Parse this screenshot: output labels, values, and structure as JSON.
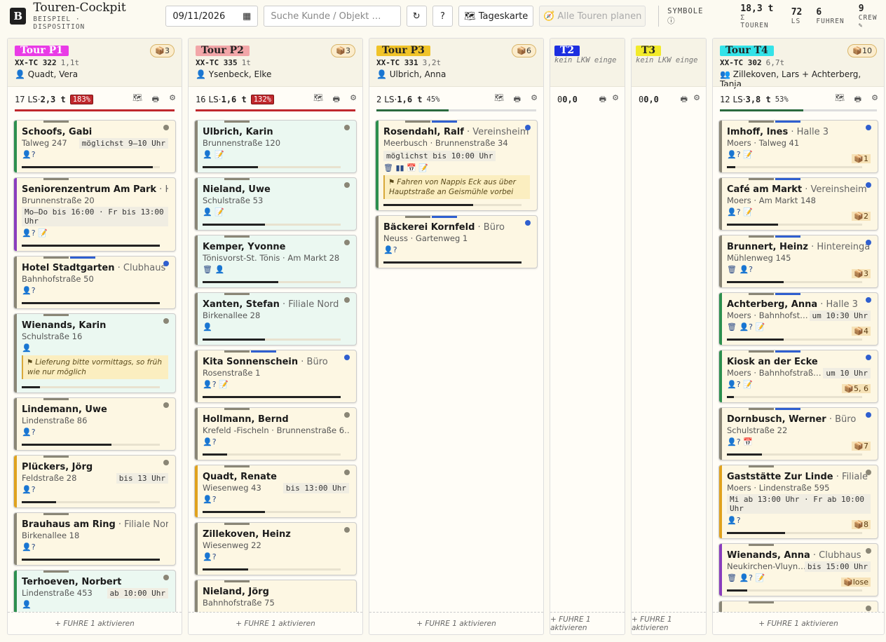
{
  "app": {
    "logo": "B",
    "title": "Touren-Cockpit",
    "subtitle": "BEISPIEL · DISPOSITION"
  },
  "toolbar": {
    "date": "09/11/2026",
    "search_placeholder": "Suche Kunde / Objekt …",
    "refresh": "↻",
    "help": "?",
    "daymap": "🗺 Tageskarte",
    "plan_all": "🧭 Alle Touren planen",
    "symbols": "SYMBOLE ⓘ"
  },
  "stats": [
    {
      "v": "18,3 t",
      "l": "Σ TOUREN"
    },
    {
      "v": "72",
      "l": "LS"
    },
    {
      "v": "6",
      "l": "FUHREN"
    },
    {
      "v": "9",
      "l": "CREW ✎"
    }
  ],
  "activate": "+ FUHRE 1 aktivieren",
  "colors": {
    "over": "#c0282d",
    "ok": "#2b6a3e",
    "blue": "#2f5fcf",
    "grey": "#8a8676",
    "purple": "#8a3dbd",
    "orange": "#e0a21d",
    "green": "#2d8f4e"
  },
  "columns": [
    {
      "tag": "Tour P1",
      "tagbg": "#e93be6",
      "tagfg": "#fff",
      "count": "📦3",
      "plate": "XX-TC 322",
      "weight": "1,1t",
      "driver": "👤 Quadt, Vera",
      "ls": "17",
      "lsl": "LS",
      "t": "2,3 t",
      "pct": "183%",
      "over": true,
      "fill": 1.0,
      "barc": "#c0282d",
      "cards": [
        {
          "n": "Schoofs, Gabi",
          "sf": "",
          "a": "Talweg 247",
          "tw": "möglichst 9–10 Uhr",
          "twr": true,
          "ic": "👤?",
          "lb": "#2d8f4e",
          "dot": "#8a8676",
          "p": 0.95,
          "mint": false
        },
        {
          "n": "Seniorenzentrum Am Park",
          "sf": " · Hi…",
          "a": "Brunnenstraße 20",
          "tw": "Mo–Do bis 16:00 · Fr bis 13:00 Uhr",
          "ic": "👤? 📝",
          "lb": "#8a3dbd",
          "p": 1.0
        },
        {
          "n": "Hotel Stadtgarten",
          "sf": " · Clubhaus",
          "a": "Bahnhofstraße 50",
          "ic": "👤?",
          "lb": "#8a8676",
          "dot": "#2f5fcf",
          "p": 1.0
        },
        {
          "n": "Wienands, Karin",
          "sf": "",
          "a": "Schulstraße 16",
          "ic": "👤",
          "lb": "#8a8676",
          "dot": "#8a8676",
          "note": "⚑ Lieferung bitte vormittags, so früh wie nur möglich",
          "p": 0.13,
          "mint": true
        },
        {
          "n": "Lindemann, Uwe",
          "sf": "",
          "a": "Lindenstraße 86",
          "ic": "👤?",
          "lb": "#8a8676",
          "dot": "#8a8676",
          "p": 0.65
        },
        {
          "n": "Plückers, Jörg",
          "sf": "",
          "a": "Feldstraße 28",
          "tw": "bis 13 Uhr",
          "twr": true,
          "ic": "👤?",
          "lb": "#e0a21d",
          "dot": "#8a8676",
          "p": 0.25
        },
        {
          "n": "Brauhaus am Ring",
          "sf": " · Filiale Nord",
          "a": "Birkenallee 18",
          "ic": "👤?",
          "lb": "#8a8676",
          "p": 1.0
        },
        {
          "n": "Terhoeven, Norbert",
          "sf": "",
          "a": "Lindenstraße 453",
          "tw": "ab 10:00 Uhr",
          "twr": true,
          "ic": "👤",
          "lb": "#2d8f4e",
          "dot": "#8a8676",
          "p": 0.5,
          "mint": true
        }
      ]
    },
    {
      "tag": "Tour P2",
      "tagbg": "#f2a6a8",
      "tagfg": "#222",
      "count": "📦3",
      "plate": "XX-TC 335",
      "weight": "1t",
      "driver": "👤 Ysenbeck, Elke",
      "ls": "16",
      "lsl": "LS",
      "t": "1,6 t",
      "pct": "132%",
      "over": true,
      "fill": 1.0,
      "barc": "#c0282d",
      "cards": [
        {
          "n": "Ulbrich, Karin",
          "sf": "",
          "a": "Brunnenstraße 120",
          "ic": "👤 📝",
          "lb": "#8a8676",
          "dot": "#8a8676",
          "p": 0.4,
          "mint": true
        },
        {
          "n": "Nieland, Uwe",
          "sf": "",
          "a": "Schulstraße 53",
          "ic": "👤 📝",
          "lb": "#8a8676",
          "dot": "#8a8676",
          "p": 0.45,
          "mint": true
        },
        {
          "n": "Kemper, Yvonne",
          "sf": "",
          "a": "Tönisvorst-St. Tönis · Am Markt 28",
          "ic": "🗑 👤",
          "lb": "#8a8676",
          "dot": "#8a8676",
          "p": 0.55,
          "mint": true
        },
        {
          "n": "Xanten, Stefan",
          "sf": " · Filiale Nord",
          "a": "Birkenallee 28",
          "ic": "👤",
          "lb": "#8a8676",
          "dot": "#8a8676",
          "p": 0.45,
          "mint": true
        },
        {
          "n": "Kita Sonnenschein",
          "sf": " · Büro",
          "a": "Rosenstraße 1",
          "ic": "👤? 📝",
          "lb": "#8a8676",
          "dot": "#2f5fcf",
          "p": 1.0
        },
        {
          "n": "Hollmann, Bernd",
          "sf": "",
          "a": "Krefeld -Fischeln · Brunnenstraße 6…",
          "ic": "👤?",
          "lb": "#8a8676",
          "dot": "#8a8676",
          "p": 0.18
        },
        {
          "n": "Quadt, Renate",
          "sf": "",
          "a": "Wiesenweg 43",
          "tw": "bis 13:00 Uhr",
          "twr": true,
          "ic": "👤?",
          "lb": "#e0a21d",
          "dot": "#8a8676",
          "p": 0.45
        },
        {
          "n": "Zillekoven, Heinz",
          "sf": "",
          "a": "Wiesenweg 22",
          "ic": "👤?",
          "lb": "#8a8676",
          "dot": "#8a8676",
          "p": 0.33
        },
        {
          "n": "Nieland, Jörg",
          "sf": "",
          "a": "Bahnhofstraße 75",
          "ic": "",
          "lb": "#8a8676",
          "p": 0.3
        }
      ]
    },
    {
      "tag": "Tour P3",
      "tagbg": "#f0c328",
      "tagfg": "#222",
      "count": "📦6",
      "plate": "XX-TC 331",
      "weight": "3,2t",
      "driver": "👤 Ulbrich, Anna",
      "ls": "2",
      "lsl": "LS",
      "t": "1,6 t",
      "pct": "45%",
      "over": false,
      "fill": 0.45,
      "barc": "#2b6a3e",
      "cards": [
        {
          "n": "Rosendahl, Ralf",
          "sf": " · Vereinsheim",
          "a": "Meerbusch · Brunnenstraße 34",
          "tw": "möglichst bis 10:00 Uhr",
          "ic": "🗑 ▮▮ 📅 📝",
          "lb": "#2d8f4e",
          "dot": "#2f5fcf",
          "note": "⚑ Fahren von Nappis Eck aus über Hauptstraße an Geismühle vorbei",
          "p": 0.65
        },
        {
          "n": "Bäckerei Kornfeld",
          "sf": " · Büro",
          "a": "Neuss · Gartenweg 1",
          "ic": "👤?",
          "lb": "#8a8676",
          "dot": "#2f5fcf",
          "p": 1.0
        }
      ]
    },
    {
      "tag": "T2",
      "tagbg": "#1c2ee0",
      "tagfg": "#fff",
      "nolkw": "kein LKW einge",
      "ls": "0",
      "lsl": "",
      "t": "0,0",
      "empty": true,
      "cards": []
    },
    {
      "tag": "T3",
      "tagbg": "#f2ea2a",
      "tagfg": "#222",
      "nolkw": "kein LKW einge",
      "ls": "0",
      "lsl": "",
      "t": "0,0",
      "empty": true,
      "cards": []
    },
    {
      "tag": "Tour T4",
      "tagbg": "#34e3e8",
      "tagfg": "#222",
      "count": "📦10",
      "plate": "XX-TC 302",
      "weight": "6,7t",
      "driver": "👥 Zillekoven, Lars  + Achterberg, Tanja",
      "ls": "12",
      "lsl": "LS",
      "t": "3,8 t",
      "pct": "53%",
      "over": false,
      "fill": 0.53,
      "barc": "#2b6a3e",
      "cards": [
        {
          "n": "Imhoff, Ines",
          "sf": " · Halle 3",
          "a": "Moers · Talweg 41",
          "ic": "👤? 📝",
          "lb": "#8a8676",
          "dot": "#2f5fcf",
          "pkg": "📦1",
          "p": 0.06
        },
        {
          "n": "Café am Markt",
          "sf": " · Vereinsheim",
          "a": "Moers · Am Markt 148",
          "ic": "👤? 📝",
          "lb": "#8a8676",
          "dot": "#2f5fcf",
          "pkg": "📦2",
          "p": 0.38
        },
        {
          "n": "Brunnert, Heinz",
          "sf": " · Hintereingang",
          "a": "Mühlenweg 145",
          "ic": "🗑 👤?",
          "lb": "#8a8676",
          "dot": "#2f5fcf",
          "pkg": "📦3",
          "p": 0.42
        },
        {
          "n": "Achterberg, Anna",
          "sf": " · Halle 3",
          "a": "Moers · Bahnhofst…",
          "tw": "um 10:30 Uhr",
          "twr": true,
          "ic": "🗑 👤? 📝",
          "lb": "#2d8f4e",
          "dot": "#2f5fcf",
          "pkg": "📦4",
          "p": 0.42
        },
        {
          "n": "Kiosk an der Ecke",
          "sf": "",
          "a": "Moers · Bahnhofstraß…",
          "tw": "um 10 Uhr",
          "twr": true,
          "ic": "👤? 📝",
          "lb": "#2d8f4e",
          "dot": "#2f5fcf",
          "pkg": "📦5, 6",
          "p": 0.05
        },
        {
          "n": "Dornbusch, Werner",
          "sf": " · Büro",
          "a": "Schulstraße 22",
          "ic": "👤? 📅",
          "lb": "#8a8676",
          "dot": "#2f5fcf",
          "pkg": "📦7",
          "p": 0.26
        },
        {
          "n": "Gaststätte Zur Linde",
          "sf": " · Filiale N…",
          "a": "Moers · Lindenstraße 595",
          "tw": "Mi ab 13:00 Uhr · Fr ab 10:00 Uhr",
          "ic": "👤?",
          "lb": "#e0a21d",
          "dot": "#8a8676",
          "pkg": "📦8",
          "p": 0.43
        },
        {
          "n": "Wienands, Anna",
          "sf": " · Clubhaus",
          "a": "Neukirchen-Vluyn…",
          "tw": "bis 15:00 Uhr",
          "twr": true,
          "ic": "🗑 👤? 📝",
          "lb": "#8a3dbd",
          "dot": "#8a8676",
          "pkg": "📦lose",
          "p": 0.15
        },
        {
          "n": "",
          "sf": "",
          "a": "",
          "ic": "",
          "lb": "#8a8676",
          "dot": "#8a8676",
          "p": 0
        }
      ]
    }
  ]
}
